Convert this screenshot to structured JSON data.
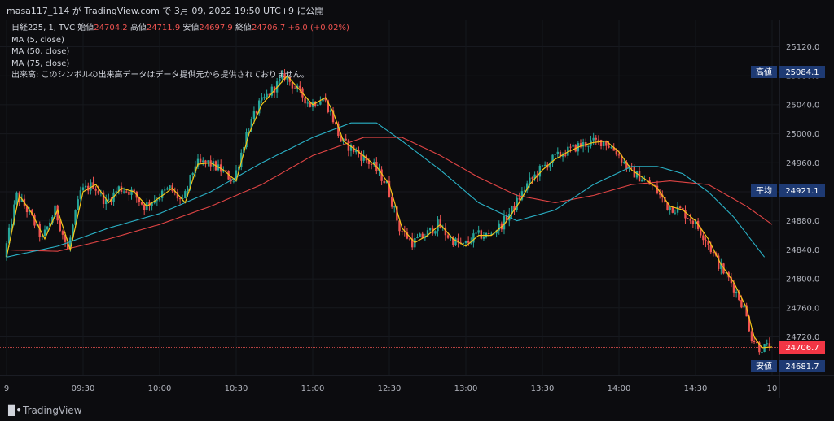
{
  "header": {
    "title": "masa117_114 が TradingView.com で 3月 09, 2022 19:50 UTC+9 に公開"
  },
  "legend": {
    "symbol": "日経225, 1, TVC",
    "open_label": "始値",
    "open": "24704.2",
    "high_label": "高値",
    "high": "24711.9",
    "low_label": "安値",
    "low": "24697.9",
    "close_label": "終値",
    "close": "24706.7",
    "change": "+6.0 (+0.02%)",
    "ma5": "MA (5, close)",
    "ma50": "MA (50, close)",
    "ma75": "MA (75, close)",
    "volume_note": "出来高: このシンボルの出来高データはデータ提供元から提供されておりません。"
  },
  "price_tags": {
    "high_label": "高値",
    "high_value": "25084.1",
    "avg_label": "平均",
    "avg_value": "24921.1",
    "low_label": "安値",
    "low_value": "24681.7",
    "last_value": "24706.7"
  },
  "footer": {
    "logo_text": "TradingView"
  },
  "colors": {
    "up": "#26a69a",
    "down": "#ef5350",
    "ma5": "#f5c518",
    "ma50": "#2ab1c6",
    "ma75": "#e04444",
    "tag_bg": "#1e3a73",
    "last_bg": "#f23645",
    "background": "#0c0c0f"
  },
  "chart_data": {
    "type": "candlestick",
    "y_ticks": [
      "25120.0",
      "25080.0",
      "25040.0",
      "25000.0",
      "24960.0",
      "24920.0",
      "24880.0",
      "24840.0",
      "24800.0",
      "24760.0",
      "24720.0"
    ],
    "ylim": [
      24676,
      25140
    ],
    "x_ticks": [
      "9",
      "09:30",
      "10:00",
      "10:30",
      "11:00",
      "12:30",
      "13:00",
      "13:30",
      "14:00",
      "14:30",
      "10"
    ],
    "x_tick_index": [
      0,
      30,
      60,
      90,
      120,
      150,
      180,
      210,
      240,
      270,
      300
    ],
    "ma5": [
      [
        0,
        24830
      ],
      [
        5,
        24915
      ],
      [
        10,
        24890
      ],
      [
        15,
        24855
      ],
      [
        20,
        24895
      ],
      [
        25,
        24840
      ],
      [
        30,
        24920
      ],
      [
        35,
        24930
      ],
      [
        40,
        24905
      ],
      [
        45,
        24925
      ],
      [
        50,
        24920
      ],
      [
        55,
        24900
      ],
      [
        60,
        24912
      ],
      [
        65,
        24925
      ],
      [
        70,
        24905
      ],
      [
        75,
        24958
      ],
      [
        80,
        24960
      ],
      [
        85,
        24950
      ],
      [
        90,
        24935
      ],
      [
        95,
        25000
      ],
      [
        100,
        25040
      ],
      [
        105,
        25060
      ],
      [
        110,
        25080
      ],
      [
        115,
        25060
      ],
      [
        120,
        25040
      ],
      [
        125,
        25050
      ],
      [
        128,
        25030
      ],
      [
        132,
        24990
      ],
      [
        138,
        24975
      ],
      [
        145,
        24955
      ],
      [
        150,
        24930
      ],
      [
        155,
        24870
      ],
      [
        160,
        24850
      ],
      [
        165,
        24860
      ],
      [
        170,
        24875
      ],
      [
        175,
        24855
      ],
      [
        180,
        24845
      ],
      [
        185,
        24860
      ],
      [
        190,
        24860
      ],
      [
        195,
        24875
      ],
      [
        200,
        24900
      ],
      [
        205,
        24930
      ],
      [
        210,
        24950
      ],
      [
        215,
        24965
      ],
      [
        220,
        24975
      ],
      [
        225,
        24983
      ],
      [
        230,
        24988
      ],
      [
        235,
        24990
      ],
      [
        240,
        24975
      ],
      [
        245,
        24950
      ],
      [
        250,
        24938
      ],
      [
        255,
        24925
      ],
      [
        260,
        24900
      ],
      [
        265,
        24895
      ],
      [
        270,
        24880
      ],
      [
        275,
        24855
      ],
      [
        280,
        24820
      ],
      [
        285,
        24795
      ],
      [
        290,
        24760
      ],
      [
        293,
        24720
      ],
      [
        296,
        24705
      ],
      [
        300,
        24706
      ]
    ],
    "ma50": [
      [
        0,
        24830
      ],
      [
        20,
        24845
      ],
      [
        40,
        24870
      ],
      [
        60,
        24890
      ],
      [
        80,
        24920
      ],
      [
        100,
        24960
      ],
      [
        120,
        24995
      ],
      [
        135,
        25015
      ],
      [
        145,
        25015
      ],
      [
        155,
        24990
      ],
      [
        170,
        24950
      ],
      [
        185,
        24905
      ],
      [
        200,
        24880
      ],
      [
        215,
        24895
      ],
      [
        230,
        24930
      ],
      [
        245,
        24955
      ],
      [
        255,
        24955
      ],
      [
        265,
        24945
      ],
      [
        275,
        24920
      ],
      [
        285,
        24885
      ],
      [
        297,
        24830
      ]
    ],
    "ma75": [
      [
        0,
        24840
      ],
      [
        20,
        24838
      ],
      [
        40,
        24855
      ],
      [
        60,
        24875
      ],
      [
        80,
        24900
      ],
      [
        100,
        24930
      ],
      [
        120,
        24970
      ],
      [
        140,
        24995
      ],
      [
        155,
        24995
      ],
      [
        170,
        24970
      ],
      [
        185,
        24940
      ],
      [
        200,
        24915
      ],
      [
        215,
        24905
      ],
      [
        230,
        24915
      ],
      [
        245,
        24930
      ],
      [
        260,
        24935
      ],
      [
        275,
        24930
      ],
      [
        290,
        24900
      ],
      [
        300,
        24875
      ]
    ]
  }
}
